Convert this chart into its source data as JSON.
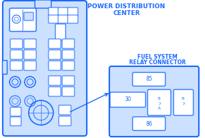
{
  "bg_color": "#ffffff",
  "blue": "#1a6aff",
  "blue_dark": "#0044cc",
  "light_blue_fill": "#cce0ff",
  "title1": "POWER DISTRIBUTION",
  "title2": "CENTER",
  "title3": "FUEL SYSTEM",
  "title4": "RELAY CONNECTOR",
  "figsize": [
    3.0,
    2.02
  ],
  "dpi": 100
}
